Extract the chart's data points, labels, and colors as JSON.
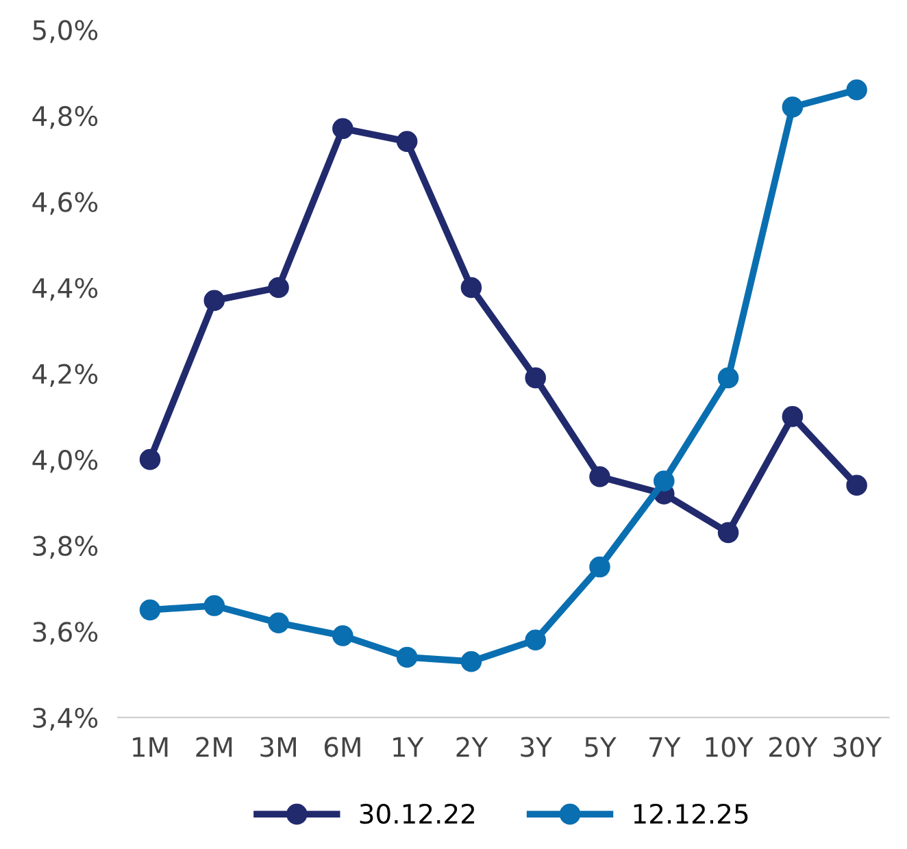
{
  "chart_data": {
    "type": "line",
    "categories": [
      "1M",
      "2M",
      "3M",
      "6M",
      "1Y",
      "2Y",
      "3Y",
      "5Y",
      "7Y",
      "10Y",
      "20Y",
      "30Y"
    ],
    "series": [
      {
        "name": "30.12.22",
        "color": "#222a6e",
        "values": [
          4.0,
          4.37,
          4.4,
          4.77,
          4.74,
          4.4,
          4.19,
          3.96,
          3.92,
          3.83,
          4.1,
          3.94
        ]
      },
      {
        "name": "12.12.25",
        "color": "#0a6fb0",
        "values": [
          3.65,
          3.66,
          3.62,
          3.59,
          3.54,
          3.53,
          3.58,
          3.75,
          3.95,
          4.19,
          4.82,
          4.86
        ]
      }
    ],
    "ylim": [
      3.4,
      5.0
    ],
    "yticks": [
      {
        "value": 3.4,
        "label": "3,4%"
      },
      {
        "value": 3.6,
        "label": "3,6%"
      },
      {
        "value": 3.8,
        "label": "3,8%"
      },
      {
        "value": 4.0,
        "label": "4,0%"
      },
      {
        "value": 4.2,
        "label": "4,2%"
      },
      {
        "value": 4.4,
        "label": "4,4%"
      },
      {
        "value": 4.6,
        "label": "4,6%"
      },
      {
        "value": 4.8,
        "label": "4,8%"
      },
      {
        "value": 5.0,
        "label": "5,0%"
      }
    ],
    "marker": "circle",
    "line_style": "solid",
    "grid": false,
    "legend": "bottom"
  }
}
